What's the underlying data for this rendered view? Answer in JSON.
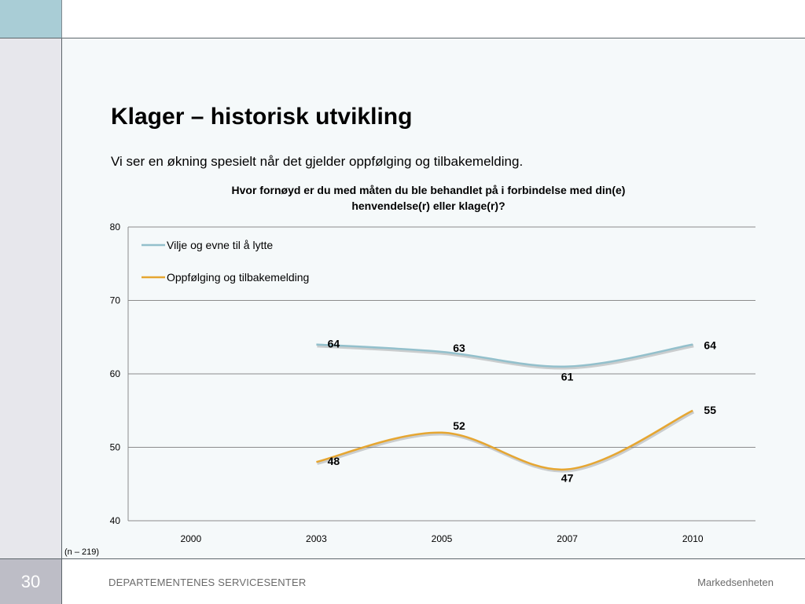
{
  "slide": {
    "title": "Klager – historisk utvikling",
    "subtitle": "Vi ser en økning spesielt når det gjelder oppfølging og tilbakemelding.",
    "note": "(n – 219)",
    "slide_number": "30",
    "footer_org": "DEPARTEMENTENES SERVICESENTER",
    "footer_unit": "Markedsenheten"
  },
  "chart_data": {
    "type": "line",
    "title": "Hvor fornøyd er du med måten du ble behandlet på i forbindelse med din(e) henvendelse(r) eller klage(r)?",
    "title_lines": [
      "Hvor fornøyd er du med måten du ble behandlet på i forbindelse med din(e)",
      "henvendelse(r) eller klage(r)?"
    ],
    "categories": [
      "2000",
      "2003",
      "2005",
      "2007",
      "2010"
    ],
    "yticks": [
      "40",
      "50",
      "60",
      "70",
      "80"
    ],
    "ylim": [
      40,
      80
    ],
    "grid": true,
    "legend_position": "top-left",
    "series": [
      {
        "name": "Vilje og evne til å lytte",
        "color": "#93c0cc",
        "values": [
          null,
          64,
          63,
          61,
          64
        ]
      },
      {
        "name": "Oppfølging og tilbakemelding",
        "color": "#e6a631",
        "values": [
          null,
          48,
          52,
          47,
          55
        ]
      }
    ]
  },
  "colors": {
    "accent_left": "#a9cdd6",
    "background": "#f5f9fa"
  }
}
